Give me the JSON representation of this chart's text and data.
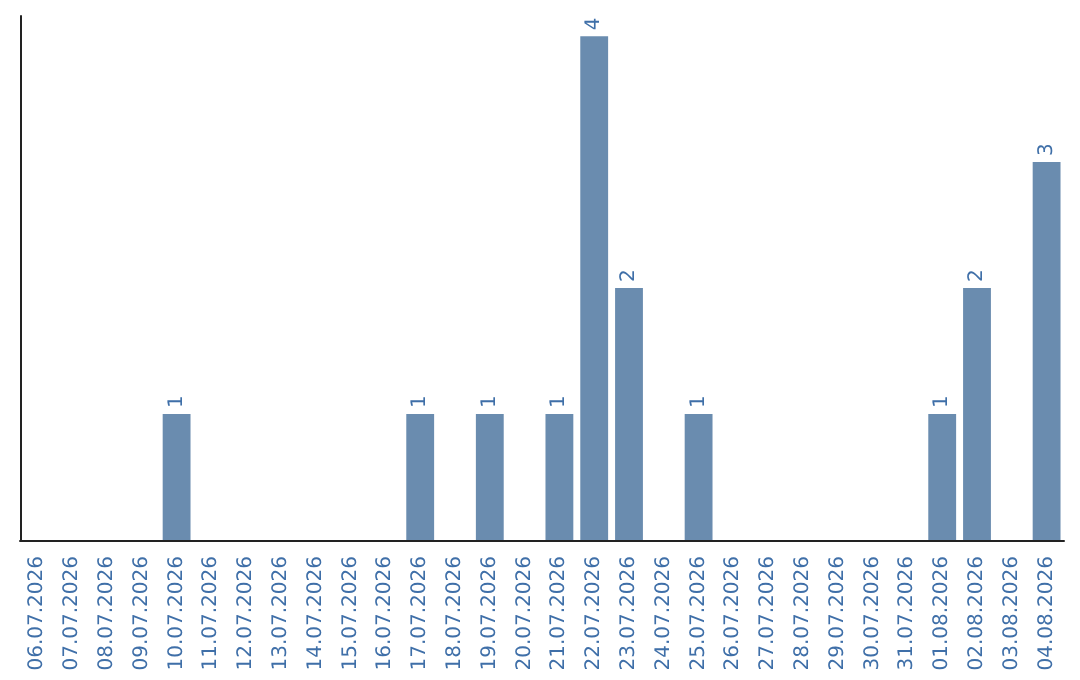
{
  "chart_data": {
    "type": "bar",
    "categories": [
      "06.07.2026",
      "07.07.2026",
      "08.07.2026",
      "09.07.2026",
      "10.07.2026",
      "11.07.2026",
      "12.07.2026",
      "13.07.2026",
      "14.07.2026",
      "15.07.2026",
      "16.07.2026",
      "17.07.2026",
      "18.07.2026",
      "19.07.2026",
      "20.07.2026",
      "21.07.2026",
      "22.07.2026",
      "23.07.2026",
      "24.07.2026",
      "25.07.2026",
      "26.07.2026",
      "27.07.2026",
      "28.07.2026",
      "29.07.2026",
      "30.07.2026",
      "31.07.2026",
      "01.08.2026",
      "02.08.2026",
      "03.08.2026",
      "04.08.2026"
    ],
    "values": [
      0,
      0,
      0,
      0,
      1,
      0,
      0,
      0,
      0,
      0,
      0,
      1,
      0,
      1,
      0,
      1,
      4,
      2,
      0,
      1,
      0,
      0,
      0,
      0,
      0,
      0,
      1,
      2,
      0,
      3
    ],
    "value_labels": [
      null,
      null,
      null,
      null,
      "1",
      null,
      null,
      null,
      null,
      null,
      null,
      "1",
      null,
      "1",
      null,
      "1",
      "4",
      "2",
      null,
      "1",
      null,
      null,
      null,
      null,
      null,
      null,
      "1",
      "2",
      null,
      "3"
    ],
    "color": "#6a8caf",
    "ylim": [
      0,
      4
    ],
    "tick_labels": "x",
    "grid": false
  }
}
